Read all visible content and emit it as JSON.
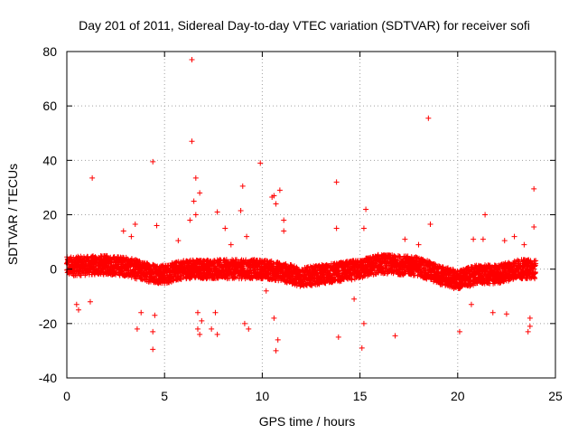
{
  "chart_data": {
    "type": "scatter",
    "title": "Day 201 of 2011, Sidereal Day-to-day VTEC variation (SDTVAR) for receiver sofi",
    "xlabel": "GPS time / hours",
    "ylabel": "SDTVAR / TECUs",
    "xlim": [
      0,
      25
    ],
    "ylim": [
      -40,
      80
    ],
    "xticks": [
      0,
      5,
      10,
      15,
      20,
      25
    ],
    "yticks": [
      -40,
      -20,
      0,
      20,
      40,
      60,
      80
    ],
    "grid": true,
    "marker": "+",
    "series_color": "#ff0000",
    "series": [
      {
        "name": "SDTVAR",
        "band": {
          "description": "dense band of points around zero",
          "x_range": [
            0,
            24
          ],
          "center_curve": [
            {
              "x": 0,
              "y": 1
            },
            {
              "x": 2,
              "y": 1.5
            },
            {
              "x": 3,
              "y": 1
            },
            {
              "x": 4,
              "y": -1
            },
            {
              "x": 5,
              "y": -2
            },
            {
              "x": 6,
              "y": 0
            },
            {
              "x": 8,
              "y": 0
            },
            {
              "x": 10,
              "y": 0
            },
            {
              "x": 11,
              "y": -1
            },
            {
              "x": 12,
              "y": -3
            },
            {
              "x": 13,
              "y": -2
            },
            {
              "x": 14,
              "y": -1
            },
            {
              "x": 15,
              "y": 0
            },
            {
              "x": 16,
              "y": 2
            },
            {
              "x": 18,
              "y": 1
            },
            {
              "x": 19,
              "y": -2
            },
            {
              "x": 20,
              "y": -4
            },
            {
              "x": 21,
              "y": -2
            },
            {
              "x": 22,
              "y": -2
            },
            {
              "x": 23,
              "y": 0
            },
            {
              "x": 24,
              "y": 0
            }
          ],
          "half_width": 3.5
        },
        "outliers": [
          {
            "x": 1.3,
            "y": 33.5
          },
          {
            "x": 0.5,
            "y": -13
          },
          {
            "x": 0.6,
            "y": -15
          },
          {
            "x": 1.2,
            "y": -12
          },
          {
            "x": 2.9,
            "y": 14
          },
          {
            "x": 3.3,
            "y": 12
          },
          {
            "x": 3.5,
            "y": 16.5
          },
          {
            "x": 3.6,
            "y": -22
          },
          {
            "x": 3.8,
            "y": -16
          },
          {
            "x": 4.4,
            "y": 39.5
          },
          {
            "x": 4.5,
            "y": -17
          },
          {
            "x": 4.6,
            "y": 16
          },
          {
            "x": 4.4,
            "y": -23
          },
          {
            "x": 4.4,
            "y": -29.5
          },
          {
            "x": 5.7,
            "y": 10.5
          },
          {
            "x": 6.4,
            "y": 77
          },
          {
            "x": 6.4,
            "y": 47
          },
          {
            "x": 6.6,
            "y": 33.5
          },
          {
            "x": 6.8,
            "y": 28
          },
          {
            "x": 6.5,
            "y": 25
          },
          {
            "x": 6.6,
            "y": 20
          },
          {
            "x": 6.3,
            "y": 18
          },
          {
            "x": 6.7,
            "y": -16
          },
          {
            "x": 6.9,
            "y": -19
          },
          {
            "x": 6.7,
            "y": -22
          },
          {
            "x": 6.8,
            "y": -24
          },
          {
            "x": 7.4,
            "y": -22
          },
          {
            "x": 7.7,
            "y": 21
          },
          {
            "x": 7.6,
            "y": -16
          },
          {
            "x": 7.7,
            "y": -24
          },
          {
            "x": 8.1,
            "y": 15
          },
          {
            "x": 8.4,
            "y": 9
          },
          {
            "x": 9.0,
            "y": 30.5
          },
          {
            "x": 8.9,
            "y": 21.5
          },
          {
            "x": 9.2,
            "y": 12
          },
          {
            "x": 9.1,
            "y": -20
          },
          {
            "x": 9.3,
            "y": -22
          },
          {
            "x": 9.9,
            "y": 39
          },
          {
            "x": 10.2,
            "y": -8
          },
          {
            "x": 10.6,
            "y": 27
          },
          {
            "x": 10.7,
            "y": 24
          },
          {
            "x": 10.5,
            "y": 26.5
          },
          {
            "x": 10.9,
            "y": 29
          },
          {
            "x": 11.1,
            "y": 18
          },
          {
            "x": 10.6,
            "y": -18
          },
          {
            "x": 10.8,
            "y": -26
          },
          {
            "x": 10.7,
            "y": -30
          },
          {
            "x": 11.1,
            "y": 14
          },
          {
            "x": 13.8,
            "y": 32
          },
          {
            "x": 13.8,
            "y": 15
          },
          {
            "x": 13.9,
            "y": -25
          },
          {
            "x": 14.7,
            "y": -11
          },
          {
            "x": 15.3,
            "y": 22
          },
          {
            "x": 15.2,
            "y": 15
          },
          {
            "x": 15.2,
            "y": -20
          },
          {
            "x": 15.1,
            "y": -29
          },
          {
            "x": 16.8,
            "y": -24.5
          },
          {
            "x": 17.3,
            "y": 11
          },
          {
            "x": 18.5,
            "y": 55.5
          },
          {
            "x": 18.6,
            "y": 16.5
          },
          {
            "x": 18.0,
            "y": 9
          },
          {
            "x": 20.1,
            "y": -23
          },
          {
            "x": 20.8,
            "y": 11
          },
          {
            "x": 21.4,
            "y": 20
          },
          {
            "x": 21.3,
            "y": 11
          },
          {
            "x": 21.8,
            "y": -16
          },
          {
            "x": 22.4,
            "y": 10.5
          },
          {
            "x": 22.9,
            "y": 12
          },
          {
            "x": 23.4,
            "y": 9
          },
          {
            "x": 23.7,
            "y": -18
          },
          {
            "x": 23.7,
            "y": -21
          },
          {
            "x": 23.6,
            "y": -23
          },
          {
            "x": 23.9,
            "y": 29.5
          },
          {
            "x": 23.9,
            "y": 15.5
          },
          {
            "x": 22.5,
            "y": -16.5
          },
          {
            "x": 20.7,
            "y": -13
          }
        ]
      }
    ]
  }
}
